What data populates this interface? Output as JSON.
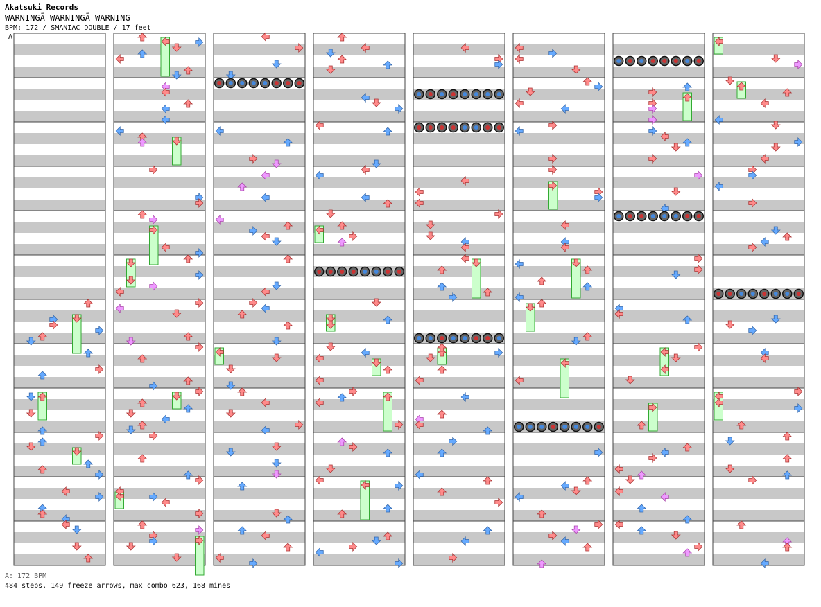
{
  "header": {
    "artist": "Akatsuki Records",
    "song_title": "WARNINGÃ WARNINGÃ WARNING",
    "meta": "BPM: 172 / SMANIAC DOUBLE / 17 feet",
    "bpm_marker": "A"
  },
  "footer": {
    "bpm_legend": "A: 172 BPM",
    "stats": "484 steps, 149 freeze arrows, max combo 623, 168 mines"
  },
  "chart_data": {
    "type": "step-chart",
    "bpm": 172,
    "difficulty": "SMANIAC",
    "style": "DOUBLE",
    "feet": 17,
    "steps": 484,
    "freeze_arrows": 149,
    "max_combo": 623,
    "mines": 168,
    "columns": 8,
    "measures_per_column": 12,
    "lanes": [
      "P1-left",
      "P1-down",
      "P1-up",
      "P1-right",
      "P2-left",
      "P2-down",
      "P2-up",
      "P2-right"
    ],
    "colors": {
      "quarter": "#ff8a8a",
      "eighth": "#66aaff",
      "sixteenth": "#ee99ff",
      "freeze": "#ccffcc",
      "freeze_border": "#33aa33",
      "mine": "#333333",
      "stripe": "#c8c8c8"
    }
  }
}
